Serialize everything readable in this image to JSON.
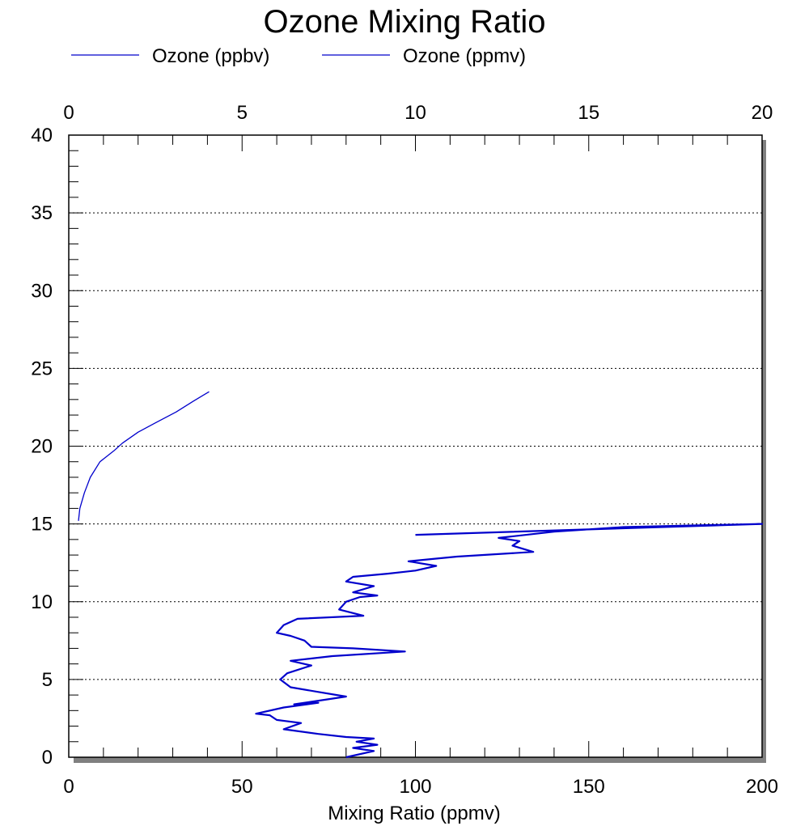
{
  "chart_data": {
    "type": "line",
    "title": "Ozone Mixing Ratio",
    "xlabel": "Mixing Ratio (ppmv)",
    "ylabel": "",
    "legend": {
      "placement": "top-left, below title",
      "entries": [
        "Ozone (ppbv)",
        "Ozone (ppmv)"
      ]
    },
    "grid": {
      "y": true,
      "x": false,
      "style": "dotted"
    },
    "x_bottom": {
      "range": [
        0,
        200
      ],
      "ticks": [
        0,
        50,
        100,
        150,
        200
      ],
      "tick_labels": [
        "0",
        "50",
        "100",
        "150",
        "200"
      ]
    },
    "x_top": {
      "range": [
        0,
        20
      ],
      "ticks": [
        0,
        5,
        10,
        15,
        20
      ],
      "tick_labels": [
        "0",
        "5",
        "10",
        "15",
        "20"
      ]
    },
    "y": {
      "range": [
        0,
        40
      ],
      "ticks": [
        0,
        5,
        10,
        15,
        20,
        25,
        30,
        35,
        40
      ],
      "tick_labels": [
        "0",
        "5",
        "10",
        "15",
        "20",
        "25",
        "30",
        "35",
        "40"
      ]
    },
    "series": [
      {
        "name": "Ozone (ppbv)",
        "color": "#0000cc",
        "axis": "bottom",
        "points": [
          [
            80,
            0.0
          ],
          [
            88,
            0.4
          ],
          [
            82,
            0.6
          ],
          [
            89,
            0.8
          ],
          [
            83,
            1.0
          ],
          [
            88,
            1.2
          ],
          [
            80,
            1.3
          ],
          [
            72,
            1.5
          ],
          [
            62,
            1.8
          ],
          [
            67,
            2.2
          ],
          [
            60,
            2.4
          ],
          [
            58,
            2.7
          ],
          [
            54,
            2.8
          ],
          [
            62,
            3.2
          ],
          [
            72,
            3.5
          ],
          [
            65,
            3.4
          ],
          [
            74,
            3.7
          ],
          [
            80,
            3.9
          ],
          [
            72,
            4.2
          ],
          [
            64,
            4.5
          ],
          [
            61,
            5.0
          ],
          [
            63,
            5.4
          ],
          [
            70,
            5.9
          ],
          [
            64,
            6.2
          ],
          [
            76,
            6.5
          ],
          [
            97,
            6.8
          ],
          [
            82,
            7.0
          ],
          [
            70,
            7.1
          ],
          [
            68,
            7.5
          ],
          [
            64,
            7.8
          ],
          [
            60,
            8.0
          ],
          [
            62,
            8.5
          ],
          [
            66,
            8.9
          ],
          [
            85,
            9.1
          ],
          [
            78,
            9.5
          ],
          [
            80,
            10.0
          ],
          [
            84,
            10.3
          ],
          [
            89,
            10.4
          ],
          [
            82,
            10.6
          ],
          [
            88,
            11.0
          ],
          [
            80,
            11.3
          ],
          [
            82,
            11.6
          ],
          [
            92,
            11.8
          ],
          [
            100,
            12.0
          ],
          [
            106,
            12.3
          ],
          [
            98,
            12.6
          ],
          [
            112,
            12.9
          ],
          [
            134,
            13.2
          ],
          [
            128,
            13.6
          ],
          [
            130,
            13.9
          ],
          [
            124,
            14.1
          ],
          [
            140,
            14.5
          ],
          [
            160,
            14.8
          ],
          [
            200,
            15.0
          ],
          [
            100,
            14.3
          ]
        ]
      },
      {
        "name": "Ozone (ppmv)",
        "color": "#0000cc",
        "axis": "top",
        "points": [
          [
            0.28,
            15.2
          ],
          [
            0.32,
            16.0
          ],
          [
            0.45,
            17.0
          ],
          [
            0.62,
            18.0
          ],
          [
            0.9,
            19.0
          ],
          [
            1.3,
            19.7
          ],
          [
            1.55,
            20.2
          ],
          [
            2.0,
            20.9
          ],
          [
            2.5,
            21.5
          ],
          [
            3.1,
            22.2
          ],
          [
            3.6,
            22.9
          ],
          [
            4.05,
            23.5
          ]
        ]
      }
    ]
  }
}
